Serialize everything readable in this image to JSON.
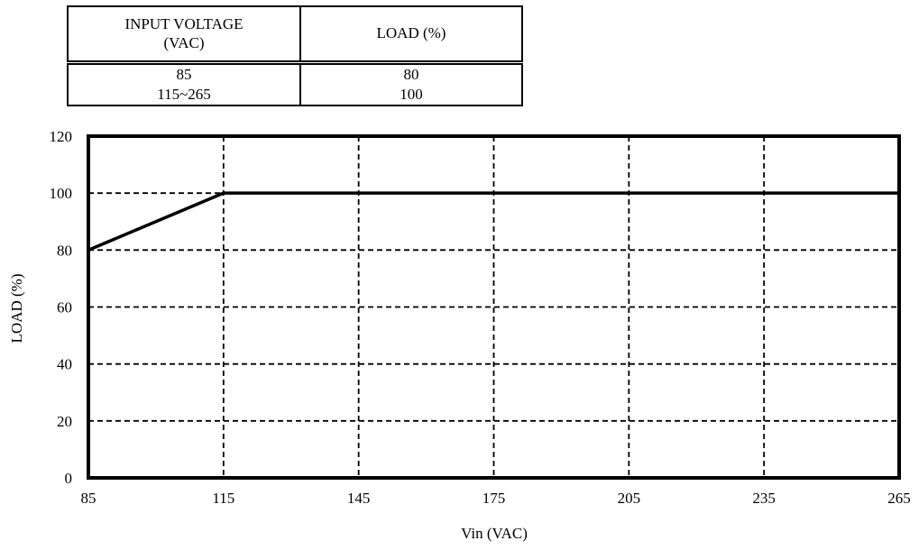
{
  "table": {
    "header_input": [
      "INPUT VOLTAGE",
      "(VAC)"
    ],
    "header_load": "LOAD (%)",
    "rows": [
      {
        "input": "85",
        "load": "80"
      },
      {
        "input": "115~265",
        "load": "100"
      }
    ]
  },
  "chart_data": {
    "type": "line",
    "xlabel": "Vin (VAC)",
    "ylabel": "LOAD (%)",
    "xlim": [
      85,
      265
    ],
    "ylim": [
      0,
      120
    ],
    "x_ticks": [
      85,
      115,
      145,
      175,
      205,
      235,
      265
    ],
    "y_ticks": [
      0,
      20,
      40,
      60,
      80,
      100,
      120
    ],
    "grid": true,
    "grid_style": "dashed",
    "series": [
      {
        "x": [
          85,
          115,
          265
        ],
        "y": [
          80,
          100,
          100
        ],
        "color": "#000000"
      }
    ]
  }
}
